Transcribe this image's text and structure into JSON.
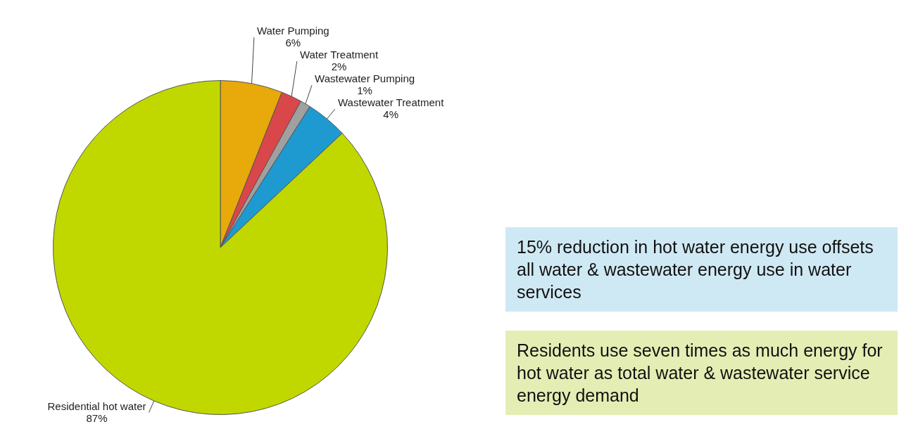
{
  "chart_data": {
    "type": "pie",
    "categories": [
      "Water Pumping",
      "Water Treatment",
      "Wastewater Pumping",
      "Wastewater Treatment",
      "Residential hot water"
    ],
    "values": [
      6,
      2,
      1,
      4,
      87
    ],
    "colors": [
      "#e8a90a",
      "#d9474a",
      "#a0a0a0",
      "#1e9ad0",
      "#c0d800"
    ],
    "value_labels": [
      "6%",
      "2%",
      "1%",
      "4%",
      "87%"
    ],
    "legend": false,
    "annotations": [
      "15% reduction in hot water energy use offsets all water & wastewater energy use in water services",
      "Residents use seven times as much energy for hot water as total water & wastewater service energy demand"
    ]
  }
}
